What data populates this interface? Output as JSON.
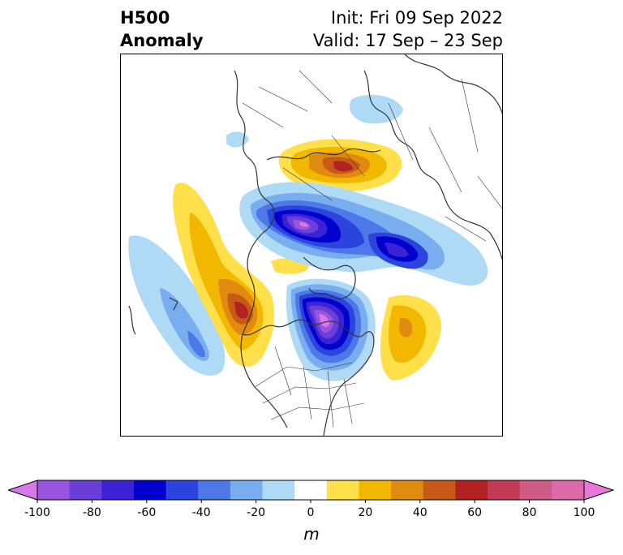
{
  "header": {
    "title_line1": "H500",
    "title_line2": "Anomaly",
    "init_text": "Init: Fri 09 Sep 2022",
    "valid_text": "Valid: 17 Sep – 23 Sep"
  },
  "colorbar": {
    "unit": "m",
    "ticks": [
      "-100",
      "-80",
      "-60",
      "-40",
      "-20",
      "0",
      "20",
      "40",
      "60",
      "80",
      "100"
    ],
    "colors": [
      "#d678e8",
      "#9a55e0",
      "#6a3fd8",
      "#3b22d6",
      "#0000cc",
      "#2a44dd",
      "#4e78e8",
      "#78aef0",
      "#aedaf6",
      "#ffffff",
      "#ffe04a",
      "#f2b800",
      "#e08a10",
      "#c85a18",
      "#b22222",
      "#c23a55",
      "#cf5a85",
      "#db6aa8",
      "#e878d8"
    ]
  },
  "map": {
    "projection": "north polar stereographic",
    "variable": "500 hPa geopotential height anomaly"
  }
}
